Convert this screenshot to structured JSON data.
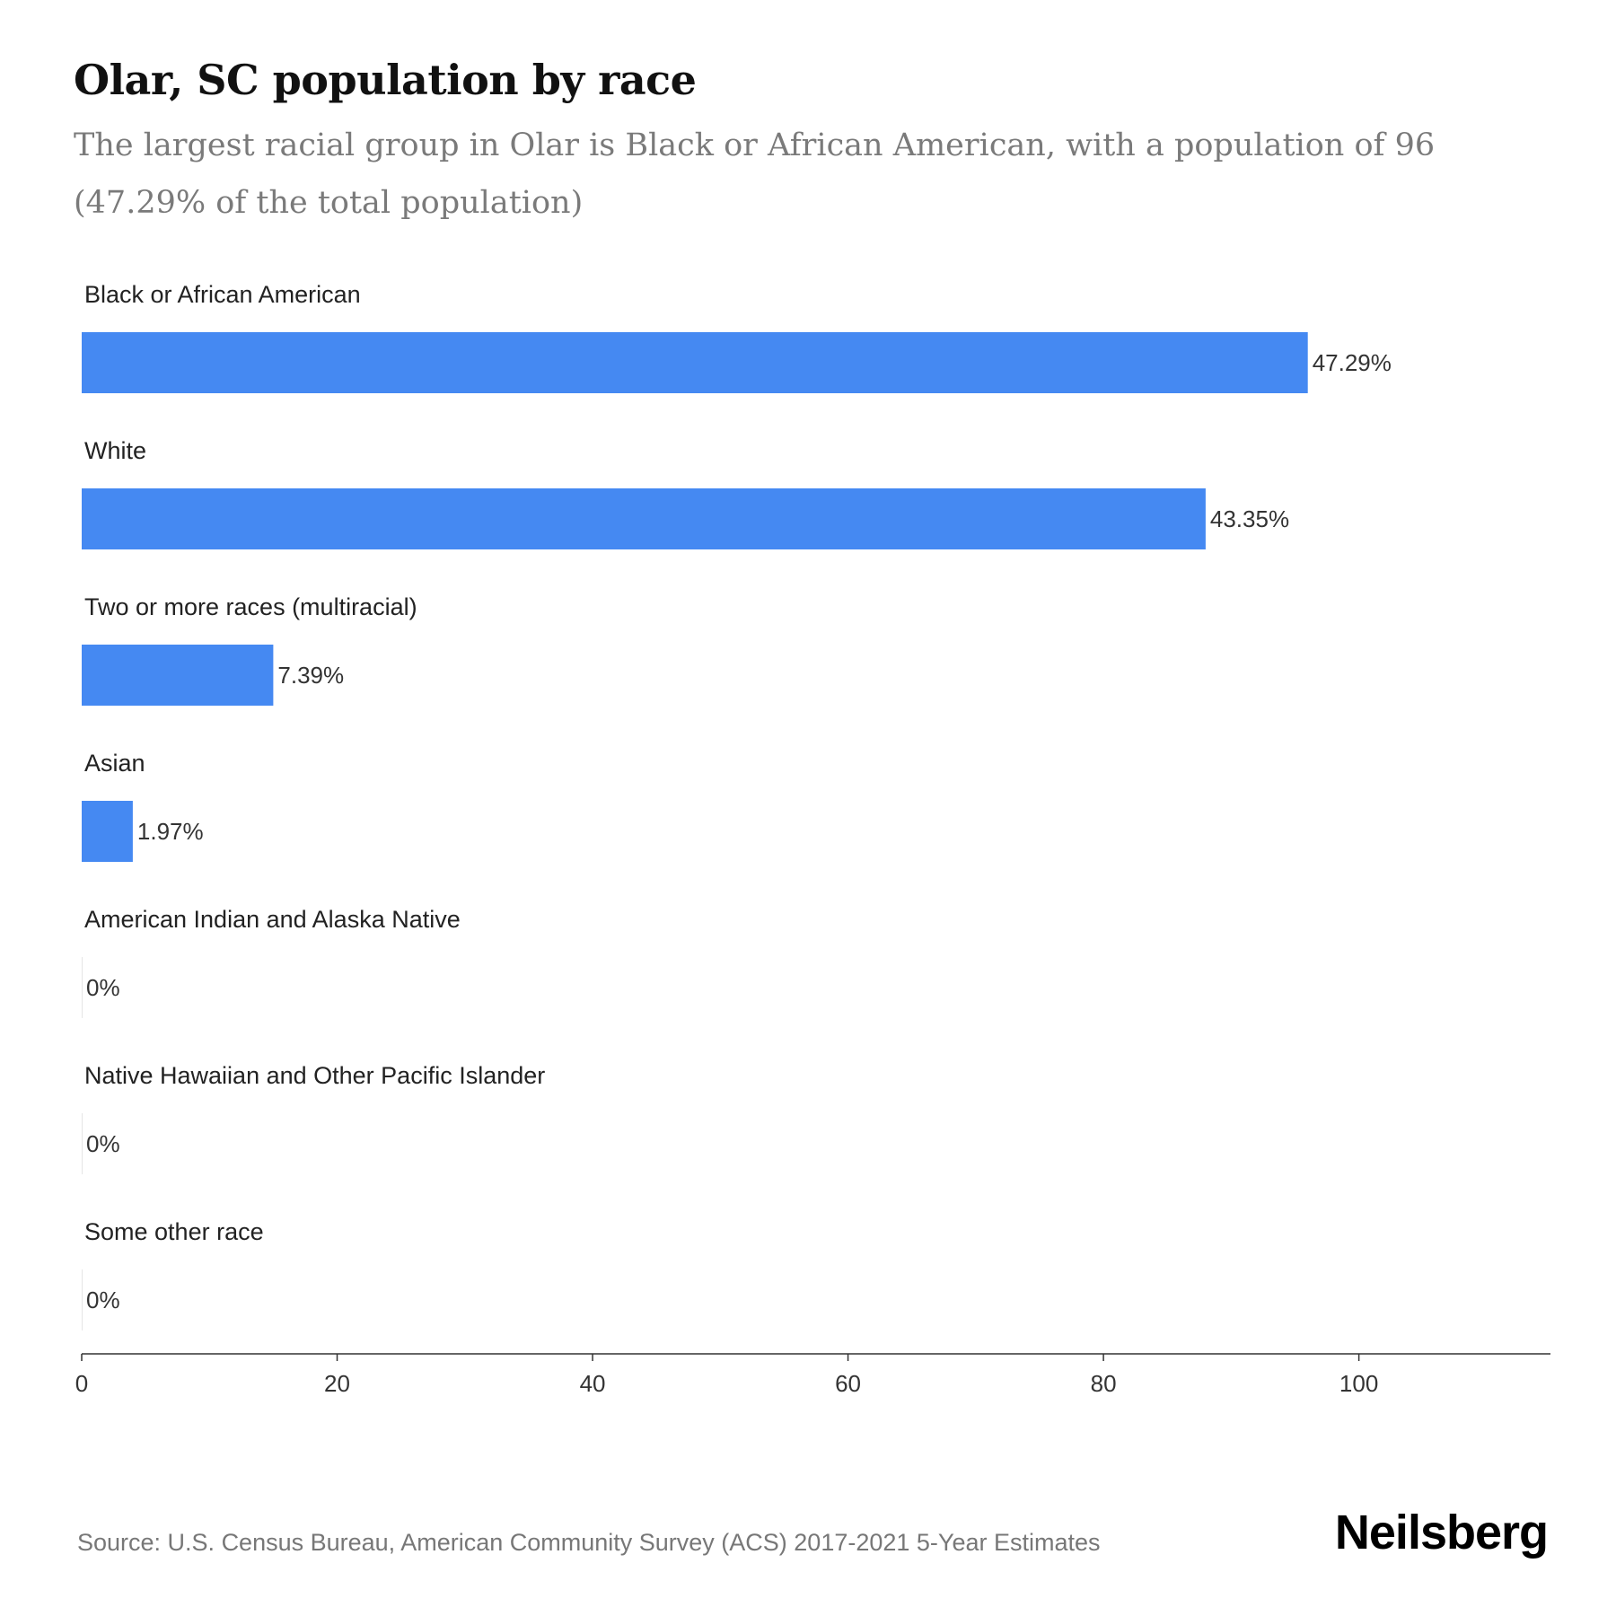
{
  "chart_data": {
    "type": "bar",
    "orientation": "horizontal",
    "title": "Olar, SC population by race",
    "subtitle": "The largest racial group in Olar is Black or African American, with a population of 96 (47.29% of the total population)",
    "categories": [
      "Black or African American",
      "White",
      "Two or more races (multiracial)",
      "Asian",
      "American Indian and Alaska Native",
      "Native Hawaiian and Other Pacific Islander",
      "Some other race"
    ],
    "values": [
      96,
      88,
      15,
      4,
      0,
      0,
      0
    ],
    "value_labels": [
      "47.29%",
      "43.35%",
      "7.39%",
      "1.97%",
      "0%",
      "0%",
      "0%"
    ],
    "xlim": [
      0,
      115
    ],
    "x_ticks": [
      0,
      20,
      40,
      60,
      80,
      100
    ],
    "grid": false,
    "bar_color": "#4589f2",
    "legend": "none"
  },
  "source": "Source: U.S. Census Bureau, American Community Survey (ACS) 2017-2021 5-Year Estimates",
  "brand": "Neilsberg"
}
